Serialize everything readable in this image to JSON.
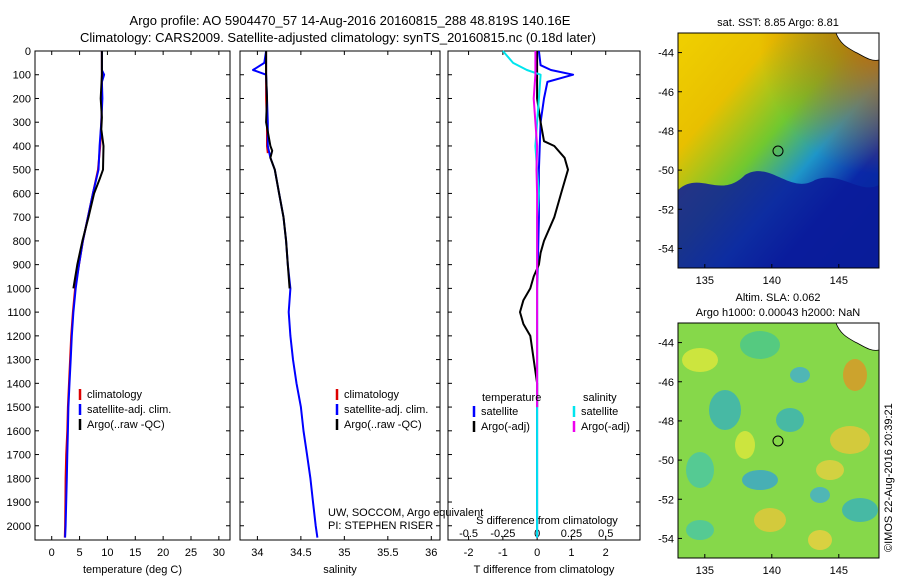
{
  "header": {
    "line1": "Argo profile: AO 5904470_57 14-Aug-2016 20160815_288 48.819S 140.16E",
    "line2": "Climatology: CARS2009. Satellite-adjusted climatology: synTS_20160815.nc (0.18d later)"
  },
  "colors": {
    "climatology": "#dd0000",
    "satellite": "#0000ff",
    "argo": "#000000",
    "cyan": "#00e5ee",
    "magenta": "#ee00ee"
  },
  "chart_data": [
    {
      "id": "temperature",
      "type": "line",
      "xlabel": "temperature (deg C)",
      "ylabel": "",
      "xlim": [
        -3,
        32
      ],
      "ylim": [
        2060,
        0
      ],
      "xticks": [
        0,
        5,
        10,
        15,
        20,
        25,
        30
      ],
      "yticks": [
        0,
        100,
        200,
        300,
        400,
        500,
        600,
        700,
        800,
        900,
        1000,
        1100,
        1200,
        1300,
        1400,
        1500,
        1600,
        1700,
        1800,
        1900,
        2000
      ],
      "legend": [
        "climatology",
        "satellite-adj. clim.",
        "Argo(..raw -QC)"
      ],
      "series": [
        {
          "name": "climatology",
          "color": "#dd0000",
          "x": [
            9.0,
            9.0,
            9.0,
            8.9,
            8.7,
            8.3,
            7.4,
            6.5,
            5.6,
            4.9,
            4.2,
            3.8,
            3.5,
            3.3,
            3.1,
            2.9,
            2.8,
            2.6,
            2.5,
            2.45,
            2.4,
            2.35
          ],
          "y": [
            0,
            100,
            200,
            300,
            400,
            500,
            600,
            700,
            800,
            900,
            1000,
            1100,
            1200,
            1300,
            1400,
            1500,
            1600,
            1700,
            1800,
            1900,
            2000,
            2050
          ]
        },
        {
          "name": "satellite-adj. clim.",
          "color": "#0000ff",
          "x": [
            9.0,
            9.0,
            9.4,
            9.0,
            9.1,
            8.9,
            8.6,
            8.4,
            7.4,
            6.5,
            5.6,
            4.9,
            4.3,
            3.9,
            3.6,
            3.4,
            3.2,
            3.0,
            2.9,
            2.8,
            2.7,
            2.6,
            2.5,
            2.4
          ],
          "y": [
            0,
            80,
            100,
            130,
            200,
            300,
            400,
            500,
            600,
            700,
            800,
            900,
            1000,
            1100,
            1200,
            1300,
            1400,
            1500,
            1600,
            1700,
            1800,
            1900,
            2000,
            2050
          ]
        },
        {
          "name": "Argo(..raw -QC)",
          "color": "#000000",
          "x": [
            9.0,
            9.0,
            8.8,
            9.0,
            8.9,
            9.3,
            9.2,
            8.6,
            7.6,
            6.6,
            5.5,
            4.6,
            3.9
          ],
          "y": [
            0,
            100,
            200,
            280,
            330,
            400,
            500,
            540,
            600,
            700,
            800,
            900,
            1000
          ]
        }
      ]
    },
    {
      "id": "salinity",
      "type": "line",
      "xlabel": "salinity",
      "ylabel": "",
      "xlim": [
        33.8,
        36.1
      ],
      "ylim": [
        2060,
        0
      ],
      "xticks": [
        34,
        34.5,
        35,
        35.5,
        36
      ],
      "legend": [
        "climatology",
        "satellite-adj. clim.",
        "Argo(..raw -QC)"
      ],
      "annotations": [
        "UW, SOCCOM, Argo equivalent",
        "PI: STEPHEN RISER"
      ],
      "series": [
        {
          "name": "climatology",
          "color": "#dd0000",
          "x": [
            34.1,
            34.1,
            34.1,
            34.11,
            34.11,
            34.12
          ],
          "y": [
            0,
            100,
            200,
            300,
            400,
            430
          ]
        },
        {
          "name": "satellite-adj. clim.",
          "color": "#0000ff",
          "x": [
            34.1,
            34.08,
            33.95,
            34.1,
            34.11,
            34.12,
            34.12,
            34.15,
            34.2,
            34.25,
            34.3,
            34.33,
            34.35,
            34.38,
            34.36,
            34.38,
            34.41,
            34.45,
            34.5,
            34.53,
            34.57,
            34.61,
            34.64,
            34.67,
            34.69
          ],
          "y": [
            0,
            50,
            80,
            100,
            200,
            300,
            400,
            450,
            500,
            600,
            700,
            800,
            900,
            1000,
            1100,
            1200,
            1300,
            1400,
            1500,
            1600,
            1700,
            1800,
            1900,
            2000,
            2050
          ]
        },
        {
          "name": "Argo(..raw -QC)",
          "color": "#000000",
          "x": [
            34.1,
            34.1,
            34.11,
            34.1,
            34.15,
            34.17,
            34.15,
            34.2,
            34.25,
            34.3,
            34.33,
            34.35,
            34.37
          ],
          "y": [
            0,
            100,
            200,
            300,
            400,
            420,
            450,
            500,
            600,
            700,
            800,
            900,
            1000
          ]
        }
      ]
    },
    {
      "id": "difference",
      "type": "line",
      "xlabel": "T difference from climatology",
      "x2label": "S difference from climatology",
      "ylabel": "",
      "xlim": [
        -2.6,
        3.0
      ],
      "ylim": [
        2060,
        0
      ],
      "xticks": [
        -2,
        -1,
        0,
        1,
        2
      ],
      "x2ticks": [
        -0.5,
        -0.25,
        0,
        0.25,
        0.5
      ],
      "legend_headers": [
        "temperature",
        "salinity"
      ],
      "legend": [
        "satellite",
        "Argo(-adj)",
        "satellite",
        "Argo(-adj)"
      ],
      "series": [
        {
          "name": "T satellite",
          "color": "#0000ff",
          "x": [
            0.05,
            0.1,
            0.4,
            1.05,
            0.3,
            0.2,
            0.1,
            0.05,
            0.05,
            0.02,
            0.0,
            0.0,
            0.0,
            0.0,
            0.0,
            0.0,
            0.0,
            0.0,
            0.0,
            0.0,
            0.0,
            0.0
          ],
          "y": [
            0,
            60,
            80,
            100,
            130,
            200,
            300,
            500,
            700,
            900,
            1000,
            1100,
            1200,
            1300,
            1400,
            1500,
            1600,
            1700,
            1800,
            1900,
            2000,
            2050
          ]
        },
        {
          "name": "T Argo(-adj)",
          "color": "#000000",
          "x": [
            0.0,
            0.0,
            0.0,
            0.1,
            0.2,
            0.5,
            0.8,
            0.9,
            0.7,
            0.5,
            0.2,
            0.1,
            0.05,
            -0.1,
            -0.2,
            -0.4,
            -0.5,
            -0.4,
            -0.2,
            -0.1,
            0.0,
            0.0
          ],
          "y": [
            0,
            100,
            200,
            300,
            380,
            400,
            450,
            500,
            600,
            700,
            800,
            850,
            900,
            950,
            1000,
            1050,
            1100,
            1150,
            1200,
            1300,
            1400,
            1500
          ]
        },
        {
          "name": "S satellite",
          "color": "#00e5ee",
          "x": [
            -1.0,
            -0.7,
            -0.3,
            0.1,
            0.05,
            0.0,
            -0.05,
            0.0,
            0.05,
            0.0,
            0.0,
            0.0,
            0.0,
            0.0,
            0.0,
            0.0,
            0.0,
            0.0,
            0.0,
            0.0
          ],
          "y": [
            0,
            50,
            80,
            100,
            200,
            300,
            400,
            500,
            600,
            700,
            800,
            900,
            1000,
            1200,
            1400,
            1600,
            1700,
            1800,
            1900,
            2050
          ]
        },
        {
          "name": "S Argo(-adj)",
          "color": "#ee00ee",
          "x": [
            -0.05,
            -0.05,
            -0.1,
            -0.05,
            0.0,
            -0.02,
            0.0,
            0.0,
            0.0,
            0.0,
            0.0,
            0.0,
            0.0
          ],
          "y": [
            0,
            100,
            200,
            300,
            400,
            500,
            600,
            700,
            800,
            900,
            1000,
            1200,
            1500
          ]
        }
      ]
    },
    {
      "id": "sst-map",
      "type": "heatmap",
      "title": "sat. SST: 8.85 Argo: 8.81",
      "xlim": [
        133,
        148
      ],
      "ylim": [
        -55,
        -43
      ],
      "xticks": [
        135,
        140,
        145
      ],
      "yticks": [
        -44,
        -46,
        -48,
        -50,
        -52,
        -54
      ],
      "marker": {
        "lon": 140.16,
        "lat": -48.819
      }
    },
    {
      "id": "sla-map",
      "type": "heatmap",
      "title": "Altim. SLA: 0.062",
      "subtitle": "Argo h1000: 0.00043 h2000: NaN",
      "xlim": [
        133,
        148
      ],
      "ylim": [
        -55,
        -43
      ],
      "xticks": [
        135,
        140,
        145
      ],
      "yticks": [
        -44,
        -46,
        -48,
        -50,
        -52,
        -54
      ],
      "marker": {
        "lon": 140.16,
        "lat": -48.819
      }
    }
  ],
  "footer": {
    "credit": "©IMOS 22-Aug-2016 20:39:21"
  }
}
